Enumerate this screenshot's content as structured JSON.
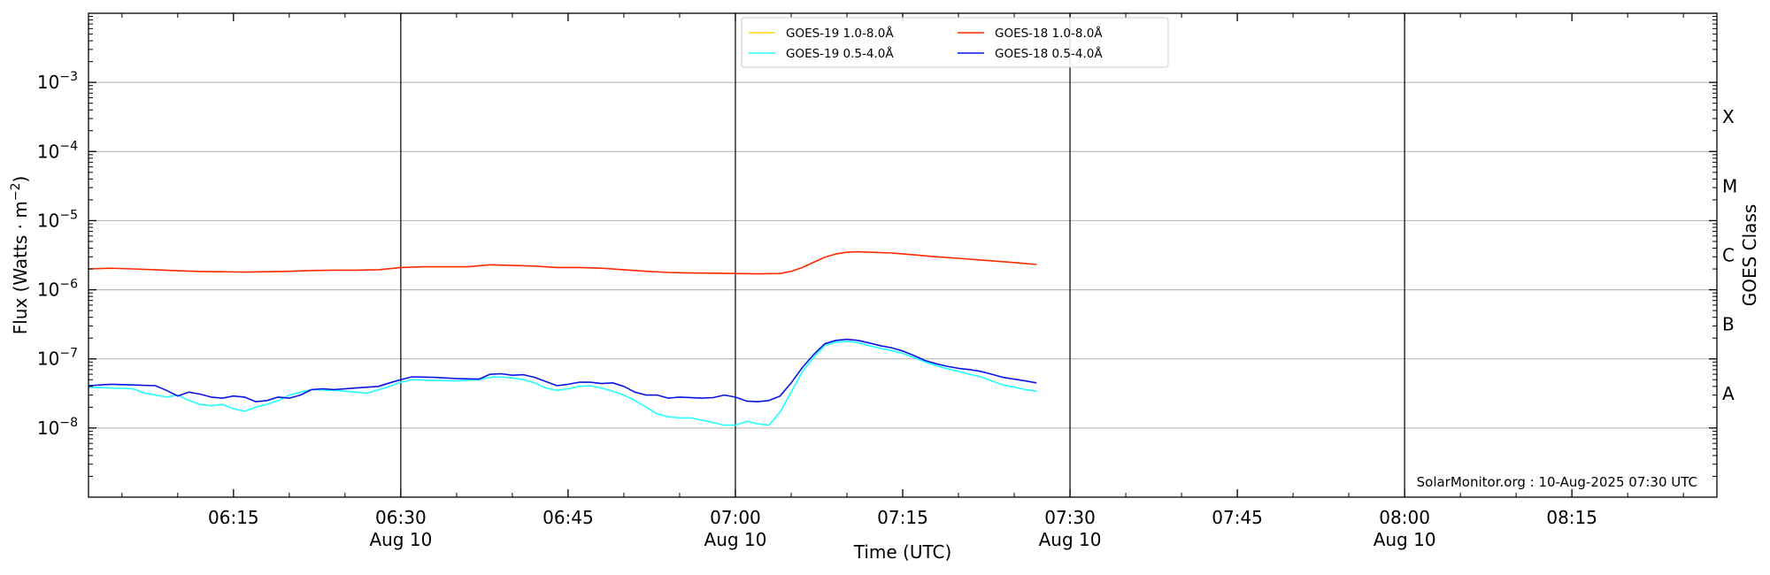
{
  "chart_data": {
    "type": "line",
    "xlabel": "Time (UTC)",
    "ylabel_main": "Flux (Watts · m",
    "ylabel_sup": "−2",
    "ylabel_close": ")",
    "right_label": "GOES Class",
    "x_range_minutes": [
      "06:02",
      "08:28"
    ],
    "y_range": [
      1e-09,
      0.01
    ],
    "y_scale": "log",
    "y_ticks": [
      {
        "value": 1e-08,
        "base": "10",
        "exp": "−8"
      },
      {
        "value": 1e-07,
        "base": "10",
        "exp": "−7"
      },
      {
        "value": 1e-06,
        "base": "10",
        "exp": "−6"
      },
      {
        "value": 1e-05,
        "base": "10",
        "exp": "−5"
      },
      {
        "value": 0.0001,
        "base": "10",
        "exp": "−4"
      },
      {
        "value": 0.001,
        "base": "10",
        "exp": "−3"
      }
    ],
    "x_ticks": [
      {
        "time": "06:15",
        "label": "06:15",
        "sublabel": ""
      },
      {
        "time": "06:30",
        "label": "06:30",
        "sublabel": "Aug 10"
      },
      {
        "time": "06:45",
        "label": "06:45",
        "sublabel": ""
      },
      {
        "time": "07:00",
        "label": "07:00",
        "sublabel": "Aug 10"
      },
      {
        "time": "07:15",
        "label": "07:15",
        "sublabel": ""
      },
      {
        "time": "07:30",
        "label": "07:30",
        "sublabel": "Aug 10"
      },
      {
        "time": "07:45",
        "label": "07:45",
        "sublabel": ""
      },
      {
        "time": "08:00",
        "label": "08:00",
        "sublabel": "Aug 10"
      },
      {
        "time": "08:15",
        "label": "08:15",
        "sublabel": ""
      }
    ],
    "vertical_lines": [
      "06:30",
      "07:00",
      "07:30",
      "08:00"
    ],
    "class_labels": [
      {
        "label": "X",
        "center": 0.000316
      },
      {
        "label": "M",
        "center": 3.16e-05
      },
      {
        "label": "C",
        "center": 3.16e-06
      },
      {
        "label": "B",
        "center": 3.16e-07
      },
      {
        "label": "A",
        "center": 3.16e-08
      }
    ],
    "grid": true,
    "legend_position": "top-center",
    "credit": "SolarMonitor.org : 10-Aug-2025 07:30 UTC",
    "series": [
      {
        "name": "GOES-19 1.0-8.0Å",
        "color": "#ffd700",
        "points": []
      },
      {
        "name": "GOES-19 0.5-4.0Å",
        "color": "#22ffff",
        "points": [
          [
            "06:02",
            3.9e-08
          ],
          [
            "06:04",
            3.8e-08
          ],
          [
            "06:06",
            3.7e-08
          ],
          [
            "06:07",
            3.2e-08
          ],
          [
            "06:08",
            3e-08
          ],
          [
            "06:09",
            2.8e-08
          ],
          [
            "06:10",
            3e-08
          ],
          [
            "06:11",
            2.5e-08
          ],
          [
            "06:12",
            2.2e-08
          ],
          [
            "06:13",
            2.1e-08
          ],
          [
            "06:14",
            2.2e-08
          ],
          [
            "06:15",
            1.9e-08
          ],
          [
            "06:16",
            1.75e-08
          ],
          [
            "06:17",
            2e-08
          ],
          [
            "06:18",
            2.2e-08
          ],
          [
            "06:19",
            2.5e-08
          ],
          [
            "06:20",
            3e-08
          ],
          [
            "06:21",
            3.3e-08
          ],
          [
            "06:22",
            3.6e-08
          ],
          [
            "06:24",
            3.5e-08
          ],
          [
            "06:26",
            3.3e-08
          ],
          [
            "06:27",
            3.2e-08
          ],
          [
            "06:29",
            4e-08
          ],
          [
            "06:30",
            4.6e-08
          ],
          [
            "06:31",
            5e-08
          ],
          [
            "06:33",
            4.9e-08
          ],
          [
            "06:35",
            4.8e-08
          ],
          [
            "06:37",
            5e-08
          ],
          [
            "06:38",
            5.4e-08
          ],
          [
            "06:39",
            5.5e-08
          ],
          [
            "06:40",
            5.3e-08
          ],
          [
            "06:41",
            5e-08
          ],
          [
            "06:42",
            4.5e-08
          ],
          [
            "06:43",
            3.8e-08
          ],
          [
            "06:44",
            3.5e-08
          ],
          [
            "06:45",
            3.7e-08
          ],
          [
            "06:46",
            4e-08
          ],
          [
            "06:47",
            4.1e-08
          ],
          [
            "06:48",
            3.8e-08
          ],
          [
            "06:49",
            3.4e-08
          ],
          [
            "06:50",
            3e-08
          ],
          [
            "06:51",
            2.5e-08
          ],
          [
            "06:52",
            2e-08
          ],
          [
            "06:53",
            1.6e-08
          ],
          [
            "06:54",
            1.45e-08
          ],
          [
            "06:55",
            1.4e-08
          ],
          [
            "06:56",
            1.4e-08
          ],
          [
            "06:57",
            1.3e-08
          ],
          [
            "06:58",
            1.2e-08
          ],
          [
            "06:59",
            1.1e-08
          ],
          [
            "07:00",
            1.1e-08
          ],
          [
            "07:01",
            1.25e-08
          ],
          [
            "07:02",
            1.15e-08
          ],
          [
            "07:03",
            1.1e-08
          ],
          [
            "07:04",
            1.7e-08
          ],
          [
            "07:05",
            3.3e-08
          ],
          [
            "07:06",
            6.5e-08
          ],
          [
            "07:07",
            1.05e-07
          ],
          [
            "07:08",
            1.55e-07
          ],
          [
            "07:09",
            1.75e-07
          ],
          [
            "07:10",
            1.8e-07
          ],
          [
            "07:11",
            1.72e-07
          ],
          [
            "07:12",
            1.55e-07
          ],
          [
            "07:13",
            1.42e-07
          ],
          [
            "07:14",
            1.32e-07
          ],
          [
            "07:15",
            1.2e-07
          ],
          [
            "07:16",
            1.05e-07
          ],
          [
            "07:17",
            9e-08
          ],
          [
            "07:18",
            8e-08
          ],
          [
            "07:19",
            7.2e-08
          ],
          [
            "07:20",
            6.6e-08
          ],
          [
            "07:21",
            6e-08
          ],
          [
            "07:22",
            5.5e-08
          ],
          [
            "07:23",
            4.8e-08
          ],
          [
            "07:24",
            4.2e-08
          ],
          [
            "07:25",
            3.9e-08
          ],
          [
            "07:26",
            3.6e-08
          ],
          [
            "07:27",
            3.4e-08
          ]
        ]
      },
      {
        "name": "GOES-18 1.0-8.0Å",
        "color": "#ff2a00",
        "points": [
          [
            "06:02",
            2e-06
          ],
          [
            "06:04",
            2.05e-06
          ],
          [
            "06:06",
            2e-06
          ],
          [
            "06:08",
            1.95e-06
          ],
          [
            "06:10",
            1.88e-06
          ],
          [
            "06:12",
            1.84e-06
          ],
          [
            "06:14",
            1.82e-06
          ],
          [
            "06:16",
            1.8e-06
          ],
          [
            "06:18",
            1.82e-06
          ],
          [
            "06:20",
            1.85e-06
          ],
          [
            "06:22",
            1.9e-06
          ],
          [
            "06:24",
            1.92e-06
          ],
          [
            "06:26",
            1.92e-06
          ],
          [
            "06:28",
            1.95e-06
          ],
          [
            "06:30",
            2.1e-06
          ],
          [
            "06:32",
            2.15e-06
          ],
          [
            "06:34",
            2.15e-06
          ],
          [
            "06:36",
            2.15e-06
          ],
          [
            "06:38",
            2.3e-06
          ],
          [
            "06:40",
            2.25e-06
          ],
          [
            "06:42",
            2.2e-06
          ],
          [
            "06:44",
            2.1e-06
          ],
          [
            "06:46",
            2.1e-06
          ],
          [
            "06:48",
            2.05e-06
          ],
          [
            "06:50",
            1.95e-06
          ],
          [
            "06:52",
            1.85e-06
          ],
          [
            "06:54",
            1.78e-06
          ],
          [
            "06:56",
            1.75e-06
          ],
          [
            "06:58",
            1.74e-06
          ],
          [
            "07:00",
            1.72e-06
          ],
          [
            "07:02",
            1.7e-06
          ],
          [
            "07:04",
            1.72e-06
          ],
          [
            "07:05",
            1.85e-06
          ],
          [
            "07:06",
            2.1e-06
          ],
          [
            "07:07",
            2.5e-06
          ],
          [
            "07:08",
            2.95e-06
          ],
          [
            "07:09",
            3.3e-06
          ],
          [
            "07:10",
            3.5e-06
          ],
          [
            "07:11",
            3.55e-06
          ],
          [
            "07:12",
            3.5e-06
          ],
          [
            "07:14",
            3.4e-06
          ],
          [
            "07:16",
            3.2e-06
          ],
          [
            "07:18",
            3e-06
          ],
          [
            "07:20",
            2.85e-06
          ],
          [
            "07:22",
            2.7e-06
          ],
          [
            "07:24",
            2.55e-06
          ],
          [
            "07:26",
            2.4e-06
          ],
          [
            "07:27",
            2.32e-06
          ]
        ]
      },
      {
        "name": "GOES-18 0.5-4.0Å",
        "color": "#0a14e6",
        "points": [
          [
            "06:02",
            4.1e-08
          ],
          [
            "06:04",
            4.3e-08
          ],
          [
            "06:06",
            4.2e-08
          ],
          [
            "06:08",
            4.1e-08
          ],
          [
            "06:09",
            3.5e-08
          ],
          [
            "06:10",
            2.9e-08
          ],
          [
            "06:11",
            3.3e-08
          ],
          [
            "06:12",
            3.1e-08
          ],
          [
            "06:13",
            2.8e-08
          ],
          [
            "06:14",
            2.7e-08
          ],
          [
            "06:15",
            2.9e-08
          ],
          [
            "06:16",
            2.8e-08
          ],
          [
            "06:17",
            2.4e-08
          ],
          [
            "06:18",
            2.5e-08
          ],
          [
            "06:19",
            2.8e-08
          ],
          [
            "06:20",
            2.7e-08
          ],
          [
            "06:21",
            3e-08
          ],
          [
            "06:22",
            3.6e-08
          ],
          [
            "06:23",
            3.7e-08
          ],
          [
            "06:24",
            3.6e-08
          ],
          [
            "06:26",
            3.8e-08
          ],
          [
            "06:28",
            4e-08
          ],
          [
            "06:29",
            4.5e-08
          ],
          [
            "06:30",
            5e-08
          ],
          [
            "06:31",
            5.5e-08
          ],
          [
            "06:33",
            5.4e-08
          ],
          [
            "06:35",
            5.2e-08
          ],
          [
            "06:37",
            5.1e-08
          ],
          [
            "06:38",
            6e-08
          ],
          [
            "06:39",
            6.1e-08
          ],
          [
            "06:40",
            5.8e-08
          ],
          [
            "06:41",
            5.9e-08
          ],
          [
            "06:42",
            5.4e-08
          ],
          [
            "06:43",
            4.7e-08
          ],
          [
            "06:44",
            4.1e-08
          ],
          [
            "06:45",
            4.3e-08
          ],
          [
            "06:46",
            4.6e-08
          ],
          [
            "06:47",
            4.6e-08
          ],
          [
            "06:48",
            4.4e-08
          ],
          [
            "06:49",
            4.5e-08
          ],
          [
            "06:50",
            4e-08
          ],
          [
            "06:51",
            3.3e-08
          ],
          [
            "06:52",
            3e-08
          ],
          [
            "06:53",
            3e-08
          ],
          [
            "06:54",
            2.7e-08
          ],
          [
            "06:55",
            2.8e-08
          ],
          [
            "06:57",
            2.7e-08
          ],
          [
            "06:58",
            2.75e-08
          ],
          [
            "06:59",
            3e-08
          ],
          [
            "07:00",
            2.8e-08
          ],
          [
            "07:01",
            2.45e-08
          ],
          [
            "07:02",
            2.4e-08
          ],
          [
            "07:03",
            2.5e-08
          ],
          [
            "07:04",
            2.9e-08
          ],
          [
            "07:05",
            4.5e-08
          ],
          [
            "07:06",
            7.5e-08
          ],
          [
            "07:07",
            1.15e-07
          ],
          [
            "07:08",
            1.65e-07
          ],
          [
            "07:09",
            1.85e-07
          ],
          [
            "07:10",
            1.92e-07
          ],
          [
            "07:11",
            1.85e-07
          ],
          [
            "07:12",
            1.7e-07
          ],
          [
            "07:13",
            1.55e-07
          ],
          [
            "07:14",
            1.45e-07
          ],
          [
            "07:15",
            1.3e-07
          ],
          [
            "07:16",
            1.12e-07
          ],
          [
            "07:17",
            9.5e-08
          ],
          [
            "07:18",
            8.5e-08
          ],
          [
            "07:19",
            7.8e-08
          ],
          [
            "07:20",
            7.3e-08
          ],
          [
            "07:21",
            7e-08
          ],
          [
            "07:22",
            6.6e-08
          ],
          [
            "07:23",
            6e-08
          ],
          [
            "07:24",
            5.4e-08
          ],
          [
            "07:25",
            5.1e-08
          ],
          [
            "07:26",
            4.8e-08
          ],
          [
            "07:27",
            4.5e-08
          ]
        ]
      }
    ]
  }
}
